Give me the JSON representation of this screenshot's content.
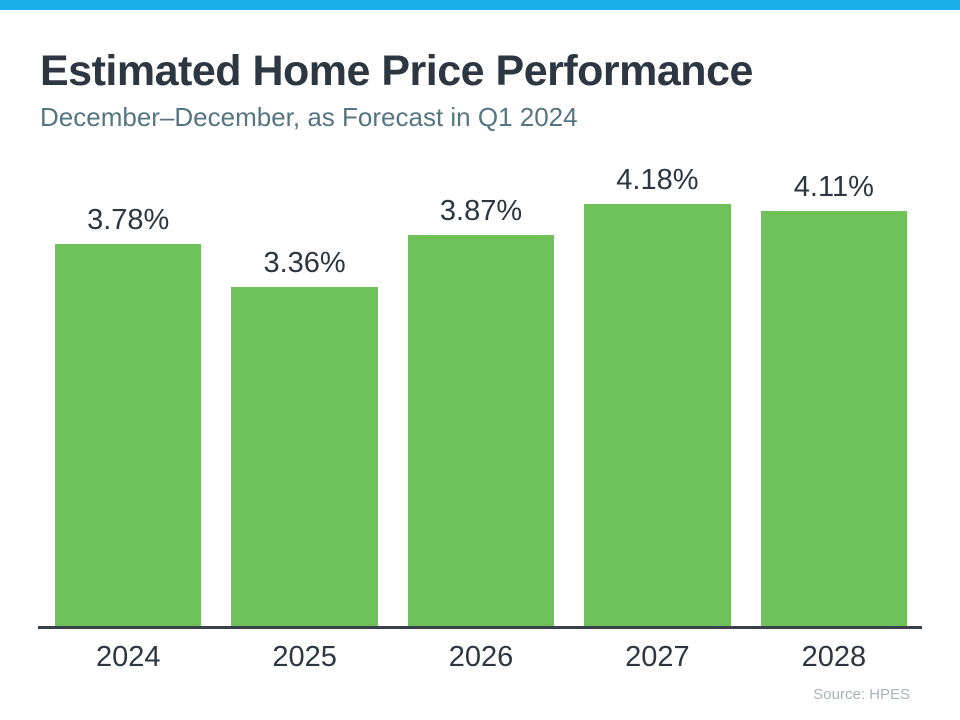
{
  "title": "Estimated Home Price Performance",
  "subtitle": "December–December, as Forecast in Q1 2024",
  "source_note": "Source: HPES",
  "colors": {
    "accent_bar": "#1BAEEB",
    "bar_green": "#6FC159",
    "text_dark": "#2C3742",
    "subtitle_slate": "#567583",
    "axis_line": "#39424C",
    "source_gray": "#A7B3BC"
  },
  "chart_data": {
    "type": "bar",
    "title": "Estimated Home Price Performance",
    "subtitle": "December–December, as Forecast in Q1 2024",
    "categories": [
      "2024",
      "2025",
      "2026",
      "2027",
      "2028"
    ],
    "values": [
      3.78,
      3.36,
      3.87,
      4.18,
      4.11
    ],
    "value_labels": [
      "3.78%",
      "3.36%",
      "3.87%",
      "4.18%",
      "4.11%"
    ],
    "xlabel": "",
    "ylabel": "",
    "ylim": [
      0,
      6.2
    ],
    "grid": false,
    "legend": false,
    "bar_color": "#6FC159",
    "value_label_position": "above-bar",
    "source": "Source: HPES"
  }
}
